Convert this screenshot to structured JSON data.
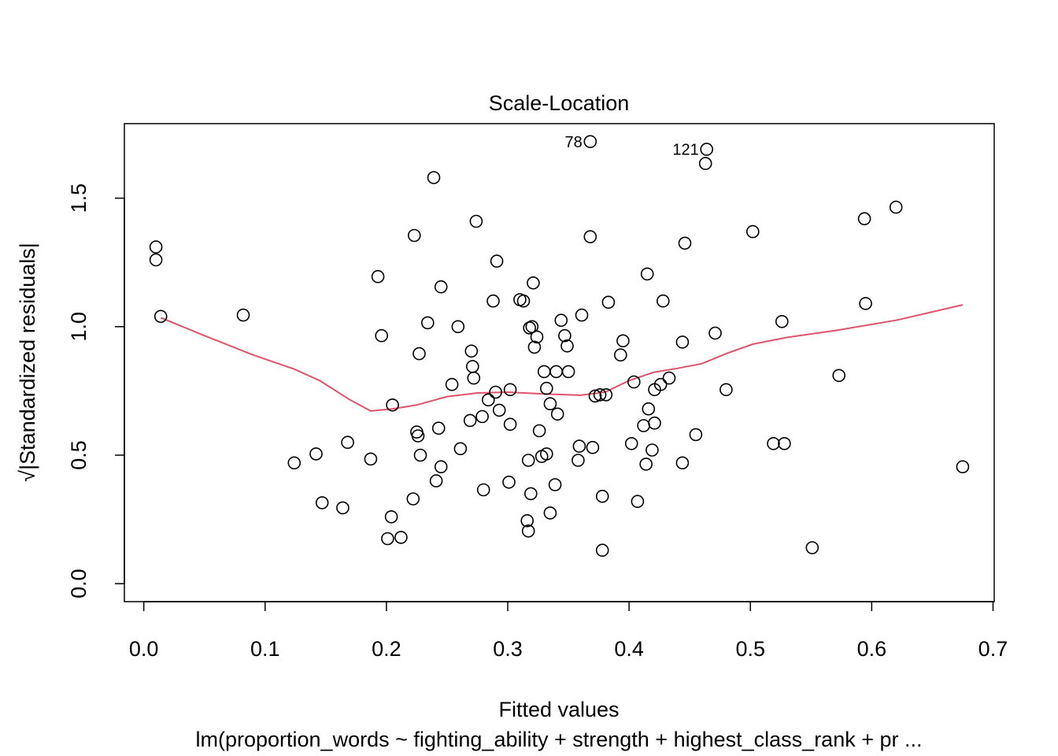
{
  "chart_data": {
    "type": "scatter",
    "title": "Scale-Location",
    "xlabel": "Fitted values",
    "ylabel": "√|Standardized residuals|",
    "subtitle": "lm(proportion_words ~ fighting_ability + strength + highest_class_rank + pr ...",
    "xlim": [
      -0.016,
      0.701
    ],
    "ylim": [
      -0.07,
      1.79
    ],
    "xticks": [
      "0.0",
      "0.1",
      "0.2",
      "0.3",
      "0.4",
      "0.5",
      "0.6",
      "0.7"
    ],
    "yticks": [
      "0.0",
      "0.5",
      "1.0",
      "1.5"
    ],
    "grid": false,
    "points": [
      {
        "x": 0.01,
        "y": 1.31
      },
      {
        "x": 0.01,
        "y": 1.26
      },
      {
        "x": 0.014,
        "y": 1.04
      },
      {
        "x": 0.082,
        "y": 1.045
      },
      {
        "x": 0.124,
        "y": 0.47
      },
      {
        "x": 0.142,
        "y": 0.505
      },
      {
        "x": 0.147,
        "y": 0.315
      },
      {
        "x": 0.164,
        "y": 0.295
      },
      {
        "x": 0.168,
        "y": 0.55
      },
      {
        "x": 0.187,
        "y": 0.485
      },
      {
        "x": 0.193,
        "y": 1.195
      },
      {
        "x": 0.196,
        "y": 0.965
      },
      {
        "x": 0.201,
        "y": 0.175
      },
      {
        "x": 0.204,
        "y": 0.26
      },
      {
        "x": 0.205,
        "y": 0.695
      },
      {
        "x": 0.212,
        "y": 0.18
      },
      {
        "x": 0.222,
        "y": 0.33
      },
      {
        "x": 0.223,
        "y": 1.355
      },
      {
        "x": 0.225,
        "y": 0.59
      },
      {
        "x": 0.226,
        "y": 0.575
      },
      {
        "x": 0.227,
        "y": 0.895
      },
      {
        "x": 0.228,
        "y": 0.5
      },
      {
        "x": 0.234,
        "y": 1.015
      },
      {
        "x": 0.239,
        "y": 1.58
      },
      {
        "x": 0.241,
        "y": 0.4
      },
      {
        "x": 0.243,
        "y": 0.605
      },
      {
        "x": 0.245,
        "y": 0.455
      },
      {
        "x": 0.245,
        "y": 1.155
      },
      {
        "x": 0.254,
        "y": 0.775
      },
      {
        "x": 0.259,
        "y": 1.0
      },
      {
        "x": 0.261,
        "y": 0.525
      },
      {
        "x": 0.269,
        "y": 0.635
      },
      {
        "x": 0.27,
        "y": 0.905
      },
      {
        "x": 0.271,
        "y": 0.845
      },
      {
        "x": 0.272,
        "y": 0.8
      },
      {
        "x": 0.274,
        "y": 1.41
      },
      {
        "x": 0.279,
        "y": 0.65
      },
      {
        "x": 0.28,
        "y": 0.365
      },
      {
        "x": 0.284,
        "y": 0.715
      },
      {
        "x": 0.288,
        "y": 1.1
      },
      {
        "x": 0.29,
        "y": 0.745
      },
      {
        "x": 0.291,
        "y": 1.255
      },
      {
        "x": 0.293,
        "y": 0.675
      },
      {
        "x": 0.301,
        "y": 0.395
      },
      {
        "x": 0.302,
        "y": 0.62
      },
      {
        "x": 0.302,
        "y": 0.755
      },
      {
        "x": 0.31,
        "y": 1.105
      },
      {
        "x": 0.313,
        "y": 1.1
      },
      {
        "x": 0.316,
        "y": 0.245
      },
      {
        "x": 0.317,
        "y": 0.205
      },
      {
        "x": 0.317,
        "y": 0.48
      },
      {
        "x": 0.318,
        "y": 0.995
      },
      {
        "x": 0.319,
        "y": 0.35
      },
      {
        "x": 0.32,
        "y": 1.0
      },
      {
        "x": 0.321,
        "y": 1.17
      },
      {
        "x": 0.322,
        "y": 0.92
      },
      {
        "x": 0.324,
        "y": 0.96
      },
      {
        "x": 0.326,
        "y": 0.595
      },
      {
        "x": 0.328,
        "y": 0.495
      },
      {
        "x": 0.33,
        "y": 0.825
      },
      {
        "x": 0.332,
        "y": 0.76
      },
      {
        "x": 0.332,
        "y": 0.505
      },
      {
        "x": 0.335,
        "y": 0.7
      },
      {
        "x": 0.335,
        "y": 0.275
      },
      {
        "x": 0.339,
        "y": 0.385
      },
      {
        "x": 0.34,
        "y": 0.825
      },
      {
        "x": 0.341,
        "y": 0.66
      },
      {
        "x": 0.344,
        "y": 1.025
      },
      {
        "x": 0.347,
        "y": 0.965
      },
      {
        "x": 0.349,
        "y": 0.925
      },
      {
        "x": 0.35,
        "y": 0.825
      },
      {
        "x": 0.358,
        "y": 0.48
      },
      {
        "x": 0.359,
        "y": 0.535
      },
      {
        "x": 0.361,
        "y": 1.045
      },
      {
        "x": 0.368,
        "y": 1.35
      },
      {
        "x": 0.368,
        "y": 1.72
      },
      {
        "x": 0.37,
        "y": 0.53
      },
      {
        "x": 0.372,
        "y": 0.73
      },
      {
        "x": 0.376,
        "y": 0.735
      },
      {
        "x": 0.378,
        "y": 0.34
      },
      {
        "x": 0.378,
        "y": 0.13
      },
      {
        "x": 0.381,
        "y": 0.735
      },
      {
        "x": 0.383,
        "y": 1.095
      },
      {
        "x": 0.393,
        "y": 0.89
      },
      {
        "x": 0.395,
        "y": 0.945
      },
      {
        "x": 0.402,
        "y": 0.545
      },
      {
        "x": 0.404,
        "y": 0.785
      },
      {
        "x": 0.407,
        "y": 0.32
      },
      {
        "x": 0.412,
        "y": 0.615
      },
      {
        "x": 0.414,
        "y": 0.465
      },
      {
        "x": 0.415,
        "y": 1.205
      },
      {
        "x": 0.416,
        "y": 0.68
      },
      {
        "x": 0.419,
        "y": 0.52
      },
      {
        "x": 0.421,
        "y": 0.755
      },
      {
        "x": 0.421,
        "y": 0.625
      },
      {
        "x": 0.426,
        "y": 0.775
      },
      {
        "x": 0.428,
        "y": 1.1
      },
      {
        "x": 0.433,
        "y": 0.8
      },
      {
        "x": 0.444,
        "y": 0.47
      },
      {
        "x": 0.444,
        "y": 0.94
      },
      {
        "x": 0.446,
        "y": 1.325
      },
      {
        "x": 0.455,
        "y": 0.58
      },
      {
        "x": 0.463,
        "y": 1.635
      },
      {
        "x": 0.464,
        "y": 1.69
      },
      {
        "x": 0.471,
        "y": 0.975
      },
      {
        "x": 0.48,
        "y": 0.755
      },
      {
        "x": 0.502,
        "y": 1.37
      },
      {
        "x": 0.519,
        "y": 0.545
      },
      {
        "x": 0.526,
        "y": 1.02
      },
      {
        "x": 0.528,
        "y": 0.545
      },
      {
        "x": 0.551,
        "y": 0.14
      },
      {
        "x": 0.573,
        "y": 0.81
      },
      {
        "x": 0.594,
        "y": 1.42
      },
      {
        "x": 0.595,
        "y": 1.09
      },
      {
        "x": 0.62,
        "y": 1.465
      },
      {
        "x": 0.675,
        "y": 0.455
      }
    ],
    "smoother": {
      "color": "#DF536B",
      "x": [
        0.014,
        0.05,
        0.09,
        0.124,
        0.145,
        0.17,
        0.187,
        0.205,
        0.225,
        0.25,
        0.275,
        0.3,
        0.33,
        0.36,
        0.38,
        0.4,
        0.42,
        0.44,
        0.46,
        0.48,
        0.502,
        0.53,
        0.57,
        0.62,
        0.675
      ],
      "y": [
        1.035,
        0.965,
        0.89,
        0.835,
        0.79,
        0.715,
        0.672,
        0.68,
        0.695,
        0.728,
        0.742,
        0.745,
        0.738,
        0.733,
        0.745,
        0.79,
        0.822,
        0.838,
        0.856,
        0.895,
        0.932,
        0.958,
        0.985,
        1.025,
        1.085
      ]
    },
    "labels": [
      {
        "text": "78",
        "x": 0.368,
        "y": 1.72
      },
      {
        "text": "121",
        "x": 0.464,
        "y": 1.69
      }
    ]
  }
}
